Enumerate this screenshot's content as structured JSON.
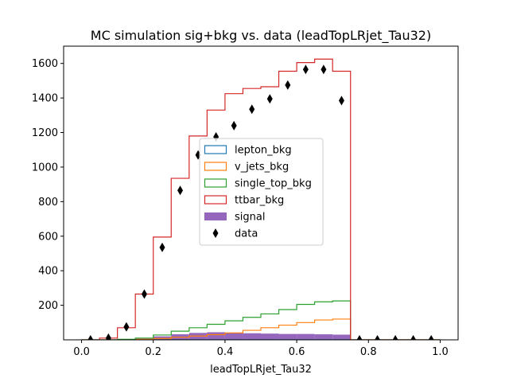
{
  "chart_data": {
    "type": "histogram",
    "title": "MC simulation sig+bkg vs. data (leadTopLRjet_Tau32)",
    "xlabel": "leadTopLRjet_Tau32",
    "ylabel": "",
    "xlim": [
      -0.05,
      1.05
    ],
    "ylim": [
      0,
      1700
    ],
    "xticks": [
      0.0,
      0.2,
      0.4,
      0.6,
      0.8,
      1.0
    ],
    "xtick_labels": [
      "0.0",
      "0.2",
      "0.4",
      "0.6",
      "0.8",
      "1.0"
    ],
    "yticks": [
      200,
      400,
      600,
      800,
      1000,
      1200,
      1400,
      1600
    ],
    "ytick_labels": [
      "200",
      "400",
      "600",
      "800",
      "1000",
      "1200",
      "1400",
      "1600"
    ],
    "bin_edges": [
      0.0,
      0.05,
      0.1,
      0.15,
      0.2,
      0.25,
      0.3,
      0.35,
      0.4,
      0.45,
      0.5,
      0.55,
      0.6,
      0.65,
      0.7,
      0.75,
      0.8,
      0.85,
      0.9,
      0.95,
      1.0
    ],
    "legend_position": "center",
    "series": [
      {
        "name": "lepton_bkg",
        "style": "step",
        "color": "#1f77b4",
        "values": [
          0,
          0,
          0,
          0,
          0,
          0,
          0,
          0,
          0,
          0,
          0,
          0,
          0,
          0,
          0,
          0,
          0,
          0,
          0,
          0
        ]
      },
      {
        "name": "v_jets_bkg",
        "style": "step",
        "color": "#ff7f0e",
        "values": [
          0,
          0,
          1,
          3,
          8,
          15,
          22,
          30,
          40,
          55,
          70,
          85,
          100,
          115,
          120,
          0,
          0,
          0,
          0,
          0
        ]
      },
      {
        "name": "single_top_bkg",
        "style": "step",
        "color": "#2ca02c",
        "values": [
          0,
          0,
          3,
          10,
          28,
          50,
          70,
          90,
          110,
          130,
          150,
          175,
          205,
          220,
          225,
          0,
          0,
          0,
          0,
          0
        ]
      },
      {
        "name": "ttbar_bkg",
        "style": "step",
        "color": "#d62728",
        "values": [
          0,
          10,
          70,
          265,
          595,
          935,
          1180,
          1330,
          1425,
          1455,
          1465,
          1555,
          1605,
          1625,
          1555,
          0,
          0,
          0,
          0,
          0
        ]
      },
      {
        "name": "signal",
        "style": "filled",
        "color": "#9467bd",
        "values": [
          0,
          0,
          2,
          8,
          20,
          32,
          40,
          44,
          42,
          38,
          36,
          34,
          34,
          32,
          30,
          0,
          0,
          0,
          0,
          0
        ]
      }
    ],
    "data_points": {
      "name": "data",
      "marker": "thin_diamond",
      "color": "#000000",
      "x": [
        0.025,
        0.075,
        0.125,
        0.175,
        0.225,
        0.275,
        0.325,
        0.375,
        0.425,
        0.475,
        0.525,
        0.575,
        0.625,
        0.675,
        0.725,
        0.775,
        0.825,
        0.875,
        0.925,
        0.975
      ],
      "y": [
        0,
        10,
        75,
        265,
        535,
        865,
        1070,
        1175,
        1240,
        1335,
        1395,
        1475,
        1565,
        1565,
        1385,
        0,
        0,
        0,
        0,
        0
      ]
    }
  }
}
